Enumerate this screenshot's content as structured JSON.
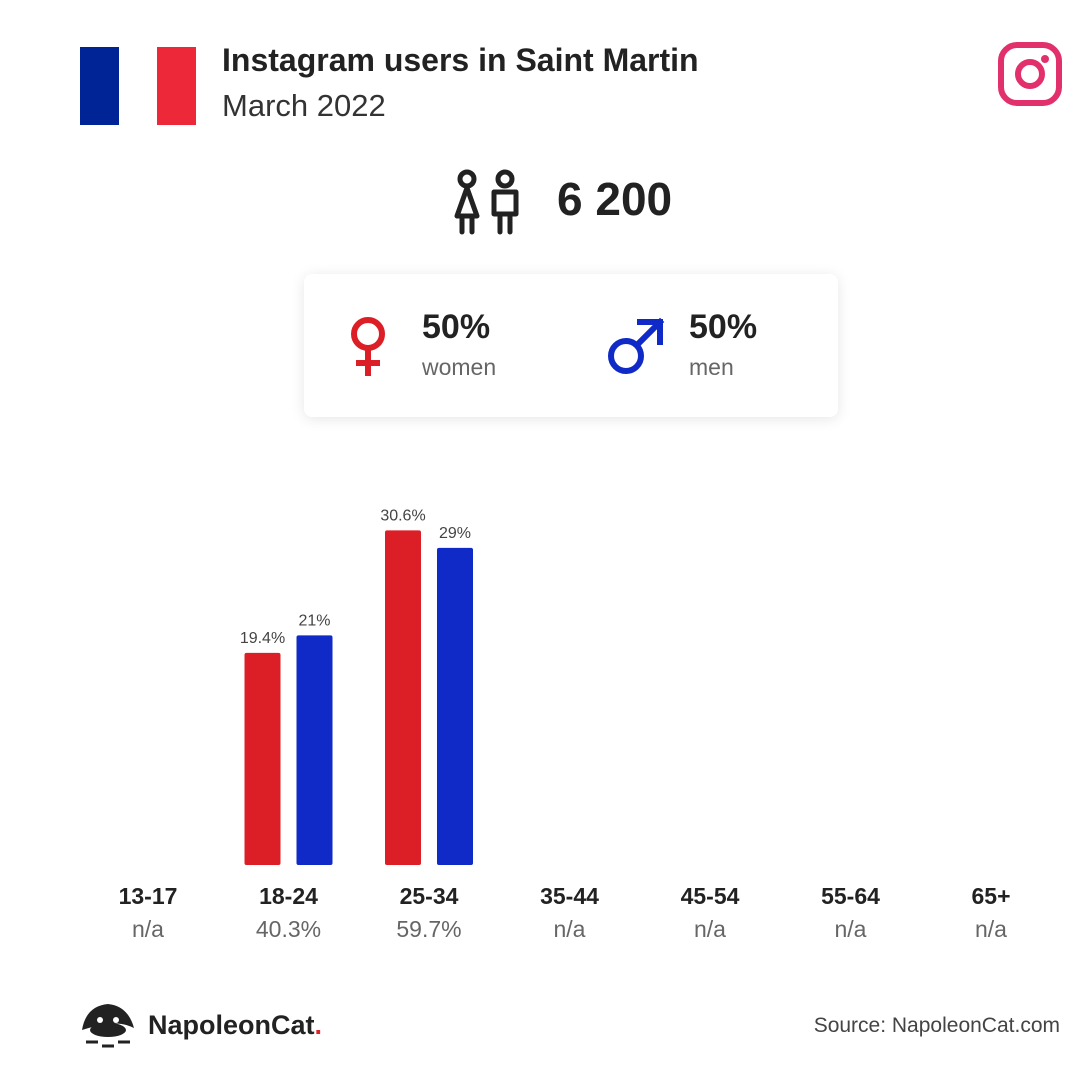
{
  "header": {
    "title": "Instagram users in Saint Martin",
    "subtitle": "March 2022",
    "flag_colors": [
      "#002395",
      "#ffffff",
      "#ED2939"
    ],
    "platform_icon": "instagram-icon",
    "platform_color": "#E1306C"
  },
  "total": {
    "icon": "people-icon",
    "value": "6 200"
  },
  "gender": {
    "women": {
      "percent": "50%",
      "label": "women",
      "icon": "female-symbol-icon",
      "color": "#DC1F26"
    },
    "men": {
      "percent": "50%",
      "label": "men",
      "icon": "male-symbol-icon",
      "color": "#0F2AC6"
    }
  },
  "chart_data": {
    "type": "bar",
    "categories": [
      "13-17",
      "18-24",
      "25-34",
      "35-44",
      "45-54",
      "55-64",
      "65+"
    ],
    "category_totals": [
      "n/a",
      "40.3%",
      "59.7%",
      "n/a",
      "n/a",
      "n/a",
      "n/a"
    ],
    "series": [
      {
        "values": [
          null,
          19.4,
          30.6,
          null,
          null,
          null,
          null
        ],
        "labels": [
          "",
          "19.4%",
          "30.6%",
          "",
          "",
          "",
          ""
        ],
        "color": "#DC1F26"
      },
      {
        "values": [
          null,
          21,
          29,
          null,
          null,
          null,
          null
        ],
        "labels": [
          "",
          "21%",
          "29%",
          "",
          "",
          "",
          ""
        ],
        "color": "#0F2AC6"
      }
    ],
    "xlabel": "",
    "ylabel": "",
    "ylim": [
      0,
      32
    ],
    "grid": false
  },
  "footer": {
    "brand_name": "NapoleonCat",
    "brand_dot": ".",
    "logo_icon": "napoleoncat-logo-icon",
    "source": "Source: NapoleonCat.com"
  }
}
